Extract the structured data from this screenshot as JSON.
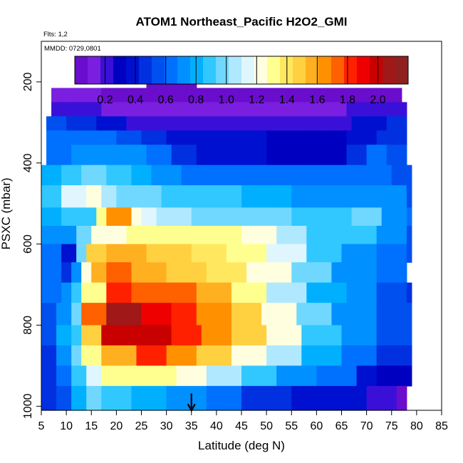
{
  "header": {
    "title": "ATOM1 Northeast_Pacific H2O2_GMI",
    "flights": "Flts: 1,2",
    "dates": "MMDD: 0729,0801"
  },
  "colors": {
    "palette": [
      "#6a0dcc",
      "#7a1fe0",
      "#3a10d8",
      "#0000c0",
      "#0010d0",
      "#0030e0",
      "#0050f0",
      "#0070ff",
      "#0090ff",
      "#00b0ff",
      "#30c8ff",
      "#70d8ff",
      "#b0e8ff",
      "#e0f6ff",
      "#ffffe0",
      "#ffff90",
      "#ffe860",
      "#ffd040",
      "#ffb020",
      "#ff9000",
      "#ff6000",
      "#ff2000",
      "#ee0000",
      "#c80000",
      "#a01818",
      "#902020"
    ]
  },
  "chart_data": {
    "type": "heatmap",
    "title": "ATOM1 Northeast_Pacific H2O2_GMI",
    "xlabel": "Latitude (deg N)",
    "ylabel": "PSXC (mbar)",
    "xlim": [
      5,
      85
    ],
    "ylim": [
      1010,
      100
    ],
    "xticks": [
      "5",
      "10",
      "15",
      "20",
      "25",
      "30",
      "35",
      "40",
      "45",
      "50",
      "55",
      "60",
      "65",
      "70",
      "75",
      "80",
      "85"
    ],
    "yticks": [
      "200",
      "400",
      "600",
      "800",
      "1000"
    ],
    "colorbar": {
      "min": 0.0,
      "max": 2.2,
      "ticks": [
        "0.2",
        "0.4",
        "0.6",
        "0.8",
        "1.0",
        "1.2",
        "1.4",
        "1.6",
        "1.8",
        "2.0"
      ]
    },
    "marker": {
      "latitude": 35,
      "pressure": 1000
    },
    "levels": [
      {
        "p": [
          190,
          215
        ],
        "segments": [
          [
            26,
            36,
            0.0
          ]
        ]
      },
      {
        "p": [
          215,
          250
        ],
        "segments": [
          [
            7,
            17,
            0.15
          ],
          [
            17,
            27,
            0.05
          ],
          [
            27,
            47,
            0.0
          ],
          [
            47,
            63,
            0.02
          ],
          [
            63,
            72,
            0.06
          ],
          [
            72,
            77,
            0.08
          ]
        ]
      },
      {
        "p": [
          250,
          285
        ],
        "segments": [
          [
            7,
            12,
            0.25
          ],
          [
            12,
            17,
            0.2
          ],
          [
            17,
            22,
            0.15
          ],
          [
            22,
            27,
            0.1
          ],
          [
            27,
            60,
            0.12
          ],
          [
            60,
            66,
            0.15
          ],
          [
            66,
            73,
            0.2
          ],
          [
            73,
            78,
            0.25
          ]
        ]
      },
      {
        "p": [
          285,
          320
        ],
        "segments": [
          [
            6,
            10,
            0.55
          ],
          [
            10,
            16,
            0.45
          ],
          [
            16,
            22,
            0.35
          ],
          [
            22,
            30,
            0.25
          ],
          [
            30,
            60,
            0.2
          ],
          [
            60,
            67,
            0.25
          ],
          [
            67,
            74,
            0.35
          ],
          [
            74,
            78,
            0.45
          ]
        ]
      },
      {
        "p": [
          320,
          355
        ],
        "segments": [
          [
            6,
            10,
            0.6
          ],
          [
            10,
            15,
            0.65
          ],
          [
            15,
            20,
            0.6
          ],
          [
            20,
            25,
            0.55
          ],
          [
            25,
            30,
            0.5
          ],
          [
            30,
            35,
            0.4
          ],
          [
            35,
            50,
            0.35
          ],
          [
            50,
            62,
            0.3
          ],
          [
            62,
            66,
            0.3
          ],
          [
            66,
            72,
            0.4
          ],
          [
            72,
            78,
            0.5
          ]
        ]
      },
      {
        "p": [
          355,
          405
        ],
        "segments": [
          [
            6,
            11,
            0.65
          ],
          [
            11,
            16,
            0.7
          ],
          [
            16,
            21,
            0.75
          ],
          [
            21,
            26,
            0.7
          ],
          [
            26,
            31,
            0.6
          ],
          [
            31,
            36,
            0.45
          ],
          [
            36,
            50,
            0.35
          ],
          [
            50,
            66,
            0.3
          ],
          [
            66,
            70,
            0.5
          ],
          [
            70,
            74,
            0.6
          ],
          [
            74,
            78,
            0.55
          ]
        ]
      },
      {
        "p": [
          405,
          455
        ],
        "segments": [
          [
            5,
            9,
            0.8
          ],
          [
            9,
            13,
            0.85
          ],
          [
            13,
            18,
            0.95
          ],
          [
            18,
            23,
            0.9
          ],
          [
            23,
            27,
            0.8
          ],
          [
            27,
            33,
            0.7
          ],
          [
            33,
            42,
            0.65
          ],
          [
            42,
            55,
            0.65
          ],
          [
            55,
            65,
            0.6
          ],
          [
            65,
            70,
            0.65
          ],
          [
            70,
            75,
            0.6
          ],
          [
            75,
            79,
            0.55
          ]
        ]
      },
      {
        "p": [
          455,
          510
        ],
        "segments": [
          [
            5,
            9,
            0.85
          ],
          [
            9,
            14,
            1.1
          ],
          [
            14,
            17,
            1.2
          ],
          [
            17,
            20,
            1.05
          ],
          [
            20,
            24,
            1.0
          ],
          [
            24,
            29,
            0.95
          ],
          [
            29,
            35,
            0.9
          ],
          [
            35,
            45,
            0.85
          ],
          [
            45,
            55,
            0.8
          ],
          [
            55,
            62,
            0.75
          ],
          [
            62,
            67,
            0.7
          ],
          [
            67,
            73,
            0.75
          ],
          [
            73,
            78,
            0.7
          ],
          [
            78,
            79,
            0.55
          ]
        ]
      },
      {
        "p": [
          510,
          555
        ],
        "segments": [
          [
            5,
            9,
            0.8
          ],
          [
            9,
            13,
            0.9
          ],
          [
            13,
            16,
            0.85
          ],
          [
            16,
            18,
            1.3
          ],
          [
            18,
            23,
            1.65
          ],
          [
            23,
            25,
            1.2
          ],
          [
            25,
            28,
            1.1
          ],
          [
            28,
            35,
            1.05
          ],
          [
            35,
            45,
            1.0
          ],
          [
            45,
            55,
            0.95
          ],
          [
            55,
            60,
            0.9
          ],
          [
            60,
            67,
            0.85
          ],
          [
            67,
            73,
            0.95
          ],
          [
            73,
            78,
            0.75
          ],
          [
            78,
            79,
            0.6
          ]
        ]
      },
      {
        "p": [
          555,
          600
        ],
        "segments": [
          [
            5,
            9,
            0.7
          ],
          [
            9,
            12,
            0.75
          ],
          [
            12,
            15,
            0.95
          ],
          [
            15,
            18,
            1.2
          ],
          [
            18,
            22,
            1.25
          ],
          [
            22,
            28,
            1.3
          ],
          [
            28,
            38,
            1.35
          ],
          [
            38,
            45,
            1.3
          ],
          [
            45,
            52,
            1.2
          ],
          [
            52,
            58,
            1.05
          ],
          [
            58,
            65,
            0.9
          ],
          [
            65,
            72,
            0.85
          ],
          [
            72,
            78,
            0.7
          ],
          [
            78,
            79,
            0.55
          ]
        ]
      },
      {
        "p": [
          600,
          645
        ],
        "segments": [
          [
            5,
            9,
            0.65
          ],
          [
            9,
            12,
            0.4
          ],
          [
            12,
            14,
            1.0
          ],
          [
            14,
            18,
            1.5
          ],
          [
            18,
            26,
            1.55
          ],
          [
            26,
            35,
            1.45
          ],
          [
            35,
            42,
            1.4
          ],
          [
            42,
            50,
            1.3
          ],
          [
            50,
            58,
            1.1
          ],
          [
            58,
            65,
            0.85
          ],
          [
            65,
            72,
            0.75
          ],
          [
            72,
            78,
            0.65
          ],
          [
            78,
            79,
            0.55
          ]
        ]
      },
      {
        "p": [
          645,
          695
        ],
        "segments": [
          [
            5,
            9,
            0.6
          ],
          [
            9,
            11,
            0.5
          ],
          [
            11,
            13,
            0.75
          ],
          [
            13,
            15,
            1.2
          ],
          [
            15,
            18,
            1.55
          ],
          [
            18,
            23,
            1.7
          ],
          [
            23,
            30,
            1.6
          ],
          [
            30,
            38,
            1.5
          ],
          [
            38,
            46,
            1.4
          ],
          [
            46,
            55,
            1.2
          ],
          [
            55,
            63,
            0.95
          ],
          [
            63,
            72,
            0.75
          ],
          [
            72,
            78,
            0.6
          ]
        ]
      },
      {
        "p": [
          695,
          745
        ],
        "segments": [
          [
            5,
            9,
            0.6
          ],
          [
            9,
            11,
            0.7
          ],
          [
            11,
            13,
            0.9
          ],
          [
            13,
            18,
            1.3
          ],
          [
            18,
            23,
            1.85
          ],
          [
            23,
            30,
            1.75
          ],
          [
            30,
            36,
            1.7
          ],
          [
            36,
            43,
            1.55
          ],
          [
            43,
            50,
            1.35
          ],
          [
            50,
            58,
            1.05
          ],
          [
            58,
            66,
            0.8
          ],
          [
            66,
            72,
            0.7
          ],
          [
            72,
            78,
            0.55
          ],
          [
            78,
            79,
            0.5
          ]
        ]
      },
      {
        "p": [
          745,
          800
        ],
        "segments": [
          [
            5,
            8,
            0.55
          ],
          [
            8,
            11,
            0.75
          ],
          [
            11,
            13,
            1.0
          ],
          [
            13,
            18,
            1.7
          ],
          [
            18,
            25,
            2.1
          ],
          [
            25,
            31,
            1.9
          ],
          [
            31,
            36,
            1.85
          ],
          [
            36,
            43,
            1.65
          ],
          [
            43,
            49,
            1.5
          ],
          [
            49,
            56,
            1.2
          ],
          [
            56,
            63,
            0.95
          ],
          [
            63,
            72,
            0.75
          ],
          [
            72,
            79,
            0.55
          ]
        ]
      },
      {
        "p": [
          800,
          850
        ],
        "segments": [
          [
            5,
            8,
            0.55
          ],
          [
            8,
            11,
            0.8
          ],
          [
            11,
            13,
            0.9
          ],
          [
            13,
            17,
            1.5
          ],
          [
            17,
            25,
            1.95
          ],
          [
            25,
            31,
            2.0
          ],
          [
            31,
            37,
            1.85
          ],
          [
            37,
            43,
            1.65
          ],
          [
            43,
            50,
            1.45
          ],
          [
            50,
            57,
            1.2
          ],
          [
            57,
            65,
            0.9
          ],
          [
            65,
            72,
            0.7
          ],
          [
            72,
            79,
            0.55
          ]
        ]
      },
      {
        "p": [
          850,
          900
        ],
        "segments": [
          [
            5,
            8,
            0.5
          ],
          [
            8,
            11,
            0.7
          ],
          [
            11,
            13,
            0.95
          ],
          [
            13,
            17,
            1.35
          ],
          [
            17,
            24,
            1.6
          ],
          [
            24,
            30,
            1.8
          ],
          [
            30,
            36,
            1.65
          ],
          [
            36,
            43,
            1.45
          ],
          [
            43,
            50,
            1.25
          ],
          [
            50,
            57,
            1.05
          ],
          [
            57,
            65,
            0.8
          ],
          [
            65,
            72,
            0.6
          ],
          [
            72,
            79,
            0.45
          ]
        ]
      },
      {
        "p": [
          900,
          950
        ],
        "segments": [
          [
            5,
            8,
            0.5
          ],
          [
            8,
            11,
            0.6
          ],
          [
            11,
            14,
            0.85
          ],
          [
            14,
            17,
            1.15
          ],
          [
            17,
            25,
            1.35
          ],
          [
            25,
            32,
            1.3
          ],
          [
            32,
            38,
            1.2
          ],
          [
            38,
            45,
            1.05
          ],
          [
            45,
            52,
            0.9
          ],
          [
            52,
            60,
            0.75
          ],
          [
            60,
            68,
            0.6
          ],
          [
            68,
            72,
            0.4
          ],
          [
            72,
            79,
            0.3
          ]
        ]
      },
      {
        "p": [
          950,
          1010
        ],
        "segments": [
          [
            5,
            8,
            0.45
          ],
          [
            8,
            11,
            0.55
          ],
          [
            11,
            14,
            0.8
          ],
          [
            14,
            17,
            1.0
          ],
          [
            17,
            23,
            0.9
          ],
          [
            23,
            30,
            0.8
          ],
          [
            30,
            38,
            0.7
          ],
          [
            38,
            45,
            0.6
          ],
          [
            45,
            55,
            0.5
          ],
          [
            55,
            63,
            0.4
          ],
          [
            63,
            70,
            0.35
          ],
          [
            70,
            76,
            0.2
          ],
          [
            76,
            78,
            0.05
          ]
        ]
      }
    ]
  }
}
